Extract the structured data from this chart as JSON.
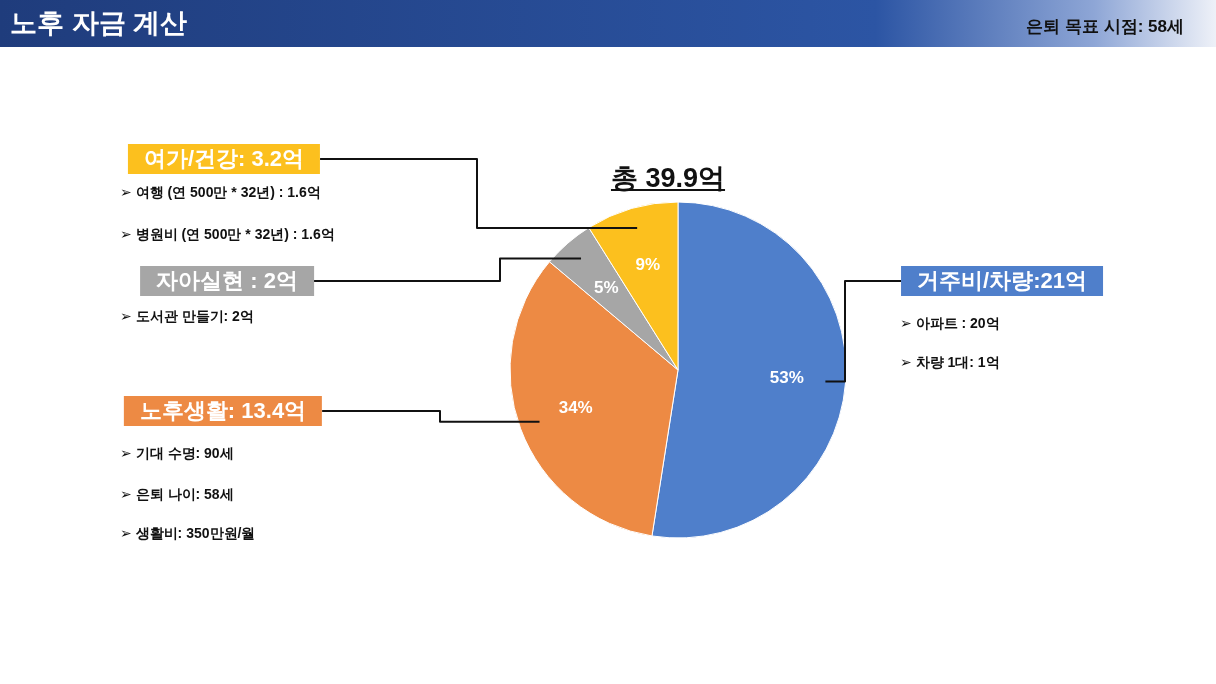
{
  "chart_data": {
    "type": "pie",
    "title": "노후 자금 계산",
    "subtitle": "총 39.9억",
    "categories": [
      "거주비/차량:21억",
      "노후생활: 13.4억",
      "자아실현 : 2억",
      "여가/건강: 3.2억"
    ],
    "values": [
      53,
      34,
      5,
      9
    ],
    "colors": [
      "#4f7fcb",
      "#ed8a44",
      "#a6a6a6",
      "#fcc01e"
    ],
    "value_labels": [
      "53%",
      "34%",
      "5%",
      "9%"
    ],
    "annotations": [
      "은퇴 목표 시점: 58세",
      "➢ 아파트 : 20억",
      "➢ 차량 1대: 1억",
      "➢ 기대 수명: 90세",
      "➢ 은퇴 나이: 58세",
      "➢ 생활비: 350만원/월",
      "➢ 도서관 만들기: 2억",
      "➢ 여행 (연 500만 * 32년) : 1.6억",
      "➢ 병원비 (연 500만 * 32년) : 1.6억"
    ]
  }
}
